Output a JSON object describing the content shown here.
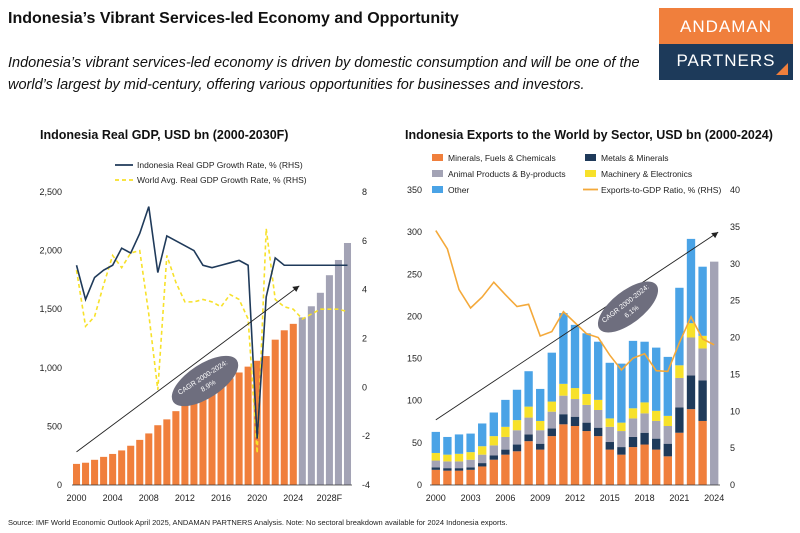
{
  "page": {
    "title": "Indonesia’s Vibrant Services-led Economy and Opportunity",
    "subtitle": "Indonesia’s vibrant services-led economy is driven by domestic consumption and will be one of the world’s largest by mid-century, offering various opportunities for businesses and investors.",
    "source": "Source: IMF World Economic Outlook April 2025, ANDAMAN PARTNERS Analysis. Note: No sectoral breakdown available for 2024 Indonesia exports."
  },
  "logo": {
    "line1": "ANDAMAN",
    "line2": "PARTNERS"
  },
  "colors": {
    "orange": "#f07f3c",
    "grey": "#a3a3b5",
    "navy": "#1f3a5a",
    "yellow": "#f7e12a",
    "blue": "#4aa3e6",
    "gold": "#f4a93a"
  },
  "chart_data": [
    {
      "type": "bar",
      "title": "Indonesia Real GDP, USD bn (2000-2030F)",
      "x": [
        2000,
        2001,
        2002,
        2003,
        2004,
        2005,
        2006,
        2007,
        2008,
        2009,
        2010,
        2011,
        2012,
        2013,
        2014,
        2015,
        2016,
        2017,
        2018,
        2019,
        2020,
        2021,
        2022,
        2023,
        2024,
        2025,
        2026,
        2027,
        2028,
        2029,
        2030
      ],
      "x_tick_labels": [
        "2000",
        "2004",
        "2008",
        "2012",
        "2016",
        "2020",
        "2024",
        "2028F"
      ],
      "ylim": [
        0,
        2500
      ],
      "y_ticks": [
        "0",
        "500",
        "1,000",
        "1,500",
        "2,000",
        "2,500"
      ],
      "y2lim": [
        -4,
        8
      ],
      "y2_ticks": [
        "-4",
        "-2",
        "0",
        "2",
        "4",
        "6",
        "8"
      ],
      "forecast_start": 2025,
      "series": [
        {
          "name": "",
          "kind": "bar",
          "axis": "left",
          "values": [
            180,
            190,
            215,
            240,
            265,
            295,
            335,
            385,
            440,
            510,
            560,
            630,
            690,
            725,
            760,
            810,
            860,
            910,
            960,
            1010,
            1060,
            1100,
            1240,
            1320,
            1375,
            1430,
            1525,
            1640,
            1790,
            1920,
            2065
          ]
        },
        {
          "name": "Indonesia Real GDP Growth Rate, % (RHS)",
          "kind": "line",
          "axis": "right",
          "style": "solid",
          "values": [
            5.0,
            3.6,
            4.5,
            4.8,
            5.0,
            5.7,
            5.5,
            6.3,
            7.4,
            4.7,
            6.2,
            6.0,
            5.8,
            5.6,
            5.0,
            4.9,
            5.0,
            5.1,
            5.2,
            5.0,
            -2.1,
            3.7,
            5.3,
            5.0,
            5.0,
            5.0,
            5.0,
            5.0,
            5.0,
            5.0,
            5.0
          ]
        },
        {
          "name": "World Avg. Real GDP Growth Rate, % (RHS)",
          "kind": "line",
          "axis": "right",
          "style": "dashed",
          "values": [
            4.8,
            2.5,
            2.9,
            4.2,
            5.4,
            4.9,
            5.5,
            5.6,
            3.0,
            -0.1,
            5.4,
            4.3,
            3.5,
            3.5,
            3.6,
            3.5,
            3.3,
            3.8,
            3.6,
            2.8,
            -2.7,
            6.5,
            3.6,
            3.3,
            3.2,
            2.8,
            3.0,
            3.2,
            3.2,
            3.2,
            3.1
          ]
        }
      ],
      "annotation": {
        "text_line1": "CAGR 2000-2024:",
        "text_line2": "8.9%"
      }
    },
    {
      "type": "bar",
      "title": "Indonesia Exports to the World by Sector, USD bn (2000-2024)",
      "x": [
        2000,
        2001,
        2002,
        2003,
        2004,
        2005,
        2006,
        2007,
        2008,
        2009,
        2010,
        2011,
        2012,
        2013,
        2014,
        2015,
        2016,
        2017,
        2018,
        2019,
        2020,
        2021,
        2022,
        2023,
        2024
      ],
      "x_tick_labels": [
        "2000",
        "2003",
        "2006",
        "2009",
        "2012",
        "2015",
        "2018",
        "2021",
        "2024"
      ],
      "ylim": [
        0,
        350
      ],
      "y_ticks": [
        "0",
        "50",
        "100",
        "150",
        "200",
        "250",
        "300",
        "350"
      ],
      "y2lim": [
        0,
        40
      ],
      "y2_ticks": [
        "0",
        "5",
        "10",
        "15",
        "20",
        "25",
        "30",
        "35",
        "40"
      ],
      "stacked": true,
      "series": [
        {
          "name": "Minerals, Fuels & Chemicals",
          "kind": "bar",
          "color": "#f07f3c",
          "values": [
            18,
            17,
            17,
            18,
            22,
            30,
            36,
            40,
            52,
            42,
            58,
            72,
            70,
            64,
            58,
            42,
            36,
            45,
            48,
            42,
            34,
            62,
            90,
            76,
            null
          ]
        },
        {
          "name": "Metals & Minerals",
          "kind": "bar",
          "color": "#1f3a5a",
          "values": [
            3,
            3,
            3,
            3,
            4,
            5,
            6,
            8,
            8,
            7,
            9,
            12,
            11,
            10,
            10,
            9,
            9,
            12,
            14,
            13,
            15,
            30,
            40,
            48,
            null
          ]
        },
        {
          "name": "Animal Products & By-products",
          "kind": "bar",
          "color": "#a3a3b5",
          "values": [
            8,
            8,
            8,
            9,
            10,
            12,
            15,
            17,
            20,
            16,
            20,
            22,
            21,
            21,
            21,
            18,
            19,
            22,
            23,
            21,
            21,
            35,
            45,
            38,
            null
          ]
        },
        {
          "name": "Machinery & Electronics",
          "kind": "bar",
          "color": "#f7e12a",
          "values": [
            9,
            8,
            9,
            9,
            10,
            11,
            12,
            12,
            13,
            11,
            12,
            14,
            13,
            13,
            12,
            10,
            10,
            12,
            13,
            12,
            12,
            15,
            17,
            15,
            null
          ]
        },
        {
          "name": "Other",
          "kind": "bar",
          "color": "#4aa3e6",
          "values": [
            25,
            21,
            23,
            22,
            27,
            28,
            32,
            36,
            42,
            38,
            58,
            84,
            75,
            72,
            69,
            66,
            70,
            80,
            72,
            75,
            70,
            92,
            100,
            82,
            null
          ]
        },
        {
          "name": "",
          "kind": "bar",
          "color": "#a3a3b5",
          "note": "2024 total only",
          "values": [
            null,
            null,
            null,
            null,
            null,
            null,
            null,
            null,
            null,
            null,
            null,
            null,
            null,
            null,
            null,
            null,
            null,
            null,
            null,
            null,
            null,
            null,
            null,
            null,
            265
          ]
        },
        {
          "name": "Exports-to-GDP Ratio, % (RHS)",
          "kind": "line",
          "axis": "right",
          "color": "#f4a93a",
          "values": [
            34.5,
            32.0,
            26.5,
            24.0,
            25.5,
            27.5,
            25.8,
            24.2,
            24.5,
            20.2,
            20.8,
            23.5,
            22.0,
            20.5,
            20.0,
            17.6,
            15.6,
            17.2,
            17.8,
            15.5,
            15.4,
            19.3,
            22.8,
            19.8,
            19.0
          ]
        }
      ],
      "annotation": {
        "text_line1": "CAGR 2000-2024:",
        "text_line2": "6.1%"
      }
    }
  ]
}
